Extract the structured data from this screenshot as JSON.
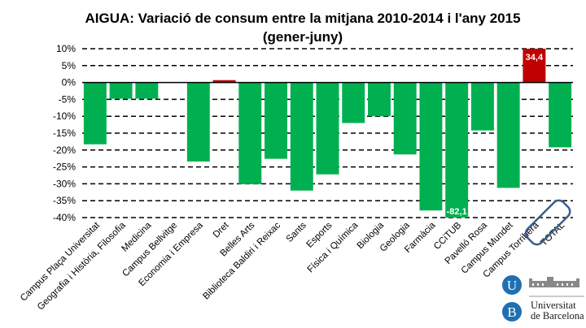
{
  "chart_data": {
    "type": "bar",
    "title": "AIGUA: Variació de consum entre la mitjana 2010-2014 i l'any 2015",
    "subtitle": "(gener-juny)",
    "xlabel": "",
    "ylabel": "",
    "ylim": [
      -40,
      10
    ],
    "ytick_step": 5,
    "yticks": [
      "10%",
      "5%",
      "0%",
      "-5%",
      "-10%",
      "-15%",
      "-20%",
      "-25%",
      "-30%",
      "-35%",
      "-40%"
    ],
    "grid": true,
    "grid_style": "dashed",
    "legend": "none",
    "categories": [
      "Campus Plaça Universitat",
      "Geografia i Història, Filosofia",
      "Medicina",
      "Campus Bellvitge",
      "Economia i Empresa",
      "Dret",
      "Belles Arts",
      "Biblioteca Baldiri i Reixac",
      "Sants",
      "Esports",
      "Física i Química",
      "Biologia",
      "Geologia",
      "Farmàcia",
      "CCiTUB",
      "Pavelló Rosa",
      "Campus Mundet",
      "Campus Torribera",
      "TOTAL"
    ],
    "values": [
      -18.3,
      -4.8,
      -4.8,
      0,
      -23.4,
      0.7,
      -30.1,
      -22.6,
      -32.0,
      -27.2,
      -12.0,
      -10.0,
      -21.3,
      -37.9,
      -82.1,
      -14.2,
      -31.2,
      34.4,
      -19.2
    ],
    "data_labels": {
      "14": "-82,1",
      "17": "34,4"
    },
    "colors": {
      "negative": "#00b050",
      "positive": "#c00000",
      "highlight_box": "#3a5e8c"
    },
    "highlighted_category": "TOTAL"
  },
  "logo": {
    "letters": [
      "U",
      "B"
    ],
    "line1": "Universitat",
    "line2": "de Barcelona",
    "color": "#1f6fb2"
  }
}
